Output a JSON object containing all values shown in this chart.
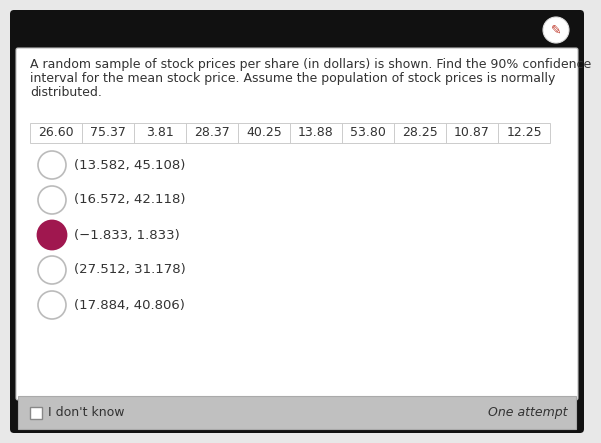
{
  "title_bar_color": "#111111",
  "pencil_color": "#c0392b",
  "body_bg": "#e8e8e8",
  "card_bg": "#ffffff",
  "outer_bg": "#1a1a1a",
  "border_color": "#cccccc",
  "question_text_line1": "A random sample of stock prices per share (in dollars) is shown. Find the 90% confidence",
  "question_text_line2": "interval for the mean stock price. Assume the population of stock prices is normally",
  "question_text_line3": "distributed.",
  "table_values": [
    "26.60",
    "75.37",
    "3.81",
    "28.37",
    "40.25",
    "13.88",
    "53.80",
    "28.25",
    "10.87",
    "12.25"
  ],
  "options": [
    "(13.582, 45.108)",
    "(16.572, 42.118)",
    "(−1.833, 1.833)",
    "(27.512, 31.178)",
    "(17.884, 40.806)"
  ],
  "selected_index": 2,
  "selected_fill": "#a0174f",
  "unselected_fill": "#ffffff",
  "circle_edge_unselected": "#bbbbbb",
  "circle_edge_selected": "#a0174f",
  "footer_bg": "#c0c0c0",
  "footer_text_left": "I don't know",
  "footer_text_right": "One attempt",
  "checkbox_color": "#ffffff",
  "text_color": "#333333",
  "option_fontsize": 9.5,
  "question_fontsize": 9.0,
  "table_fontsize": 9.0,
  "footer_fontsize": 9.0
}
